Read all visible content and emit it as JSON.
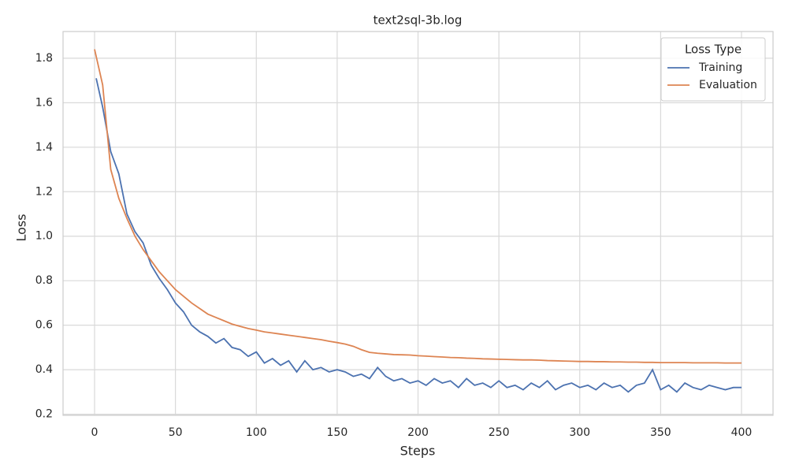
{
  "chart_data": {
    "type": "line",
    "title": "text2sql-3b.log",
    "x_label": "Steps",
    "y_label": "Loss",
    "xlim": [
      -19.5,
      419.5
    ],
    "ylim": [
      0.195,
      1.92
    ],
    "xticks": [
      0,
      50,
      100,
      150,
      200,
      250,
      300,
      350,
      400
    ],
    "yticks": [
      {
        "value": 0.2,
        "label": "0.2"
      },
      {
        "value": 0.4,
        "label": "0.4"
      },
      {
        "value": 0.6,
        "label": "0.6"
      },
      {
        "value": 0.8,
        "label": "0.8"
      },
      {
        "value": 1.0,
        "label": "1.0"
      },
      {
        "value": 1.2,
        "label": "1.2"
      },
      {
        "value": 1.4,
        "label": "1.4"
      },
      {
        "value": 1.6,
        "label": "1.6"
      },
      {
        "value": 1.8,
        "label": "1.8"
      }
    ],
    "grid": true,
    "legend_title": "Loss Type",
    "legend_position": "upper right",
    "series": [
      {
        "name": "Training",
        "color": "#4c72b0",
        "x": [
          1,
          5,
          10,
          15,
          20,
          25,
          30,
          35,
          40,
          45,
          50,
          55,
          60,
          65,
          70,
          75,
          80,
          85,
          90,
          95,
          100,
          105,
          110,
          115,
          120,
          125,
          130,
          135,
          140,
          145,
          150,
          155,
          160,
          165,
          170,
          175,
          180,
          185,
          190,
          195,
          200,
          205,
          210,
          215,
          220,
          225,
          230,
          235,
          240,
          245,
          250,
          255,
          260,
          265,
          270,
          275,
          280,
          285,
          290,
          295,
          300,
          305,
          310,
          315,
          320,
          325,
          330,
          335,
          340,
          345,
          350,
          355,
          360,
          365,
          370,
          375,
          380,
          385,
          390,
          395,
          400
        ],
        "values": [
          1.71,
          1.58,
          1.38,
          1.28,
          1.1,
          1.02,
          0.97,
          0.87,
          0.81,
          0.76,
          0.7,
          0.66,
          0.6,
          0.57,
          0.55,
          0.52,
          0.54,
          0.5,
          0.49,
          0.46,
          0.48,
          0.43,
          0.45,
          0.42,
          0.44,
          0.39,
          0.44,
          0.4,
          0.41,
          0.39,
          0.4,
          0.39,
          0.37,
          0.38,
          0.36,
          0.41,
          0.37,
          0.35,
          0.36,
          0.34,
          0.35,
          0.33,
          0.36,
          0.34,
          0.35,
          0.32,
          0.36,
          0.33,
          0.34,
          0.32,
          0.35,
          0.32,
          0.33,
          0.31,
          0.34,
          0.32,
          0.35,
          0.31,
          0.33,
          0.34,
          0.32,
          0.33,
          0.31,
          0.34,
          0.32,
          0.33,
          0.3,
          0.33,
          0.34,
          0.4,
          0.31,
          0.33,
          0.3,
          0.34,
          0.32,
          0.31,
          0.33,
          0.32,
          0.31,
          0.32,
          0.32
        ]
      },
      {
        "name": "Evaluation",
        "color": "#dd8452",
        "x": [
          0,
          5,
          10,
          15,
          20,
          25,
          30,
          35,
          40,
          45,
          50,
          55,
          60,
          65,
          70,
          75,
          80,
          85,
          90,
          95,
          100,
          105,
          110,
          115,
          120,
          125,
          130,
          135,
          140,
          145,
          150,
          155,
          160,
          165,
          170,
          175,
          180,
          185,
          190,
          195,
          200,
          205,
          210,
          215,
          220,
          225,
          230,
          235,
          240,
          245,
          250,
          255,
          260,
          265,
          270,
          275,
          280,
          285,
          290,
          295,
          300,
          305,
          310,
          315,
          320,
          325,
          330,
          335,
          340,
          345,
          350,
          355,
          360,
          365,
          370,
          375,
          380,
          385,
          390,
          395,
          400
        ],
        "values": [
          1.84,
          1.68,
          1.3,
          1.17,
          1.08,
          1.0,
          0.94,
          0.89,
          0.84,
          0.8,
          0.76,
          0.73,
          0.7,
          0.675,
          0.65,
          0.635,
          0.62,
          0.605,
          0.595,
          0.585,
          0.578,
          0.57,
          0.565,
          0.56,
          0.555,
          0.55,
          0.545,
          0.54,
          0.535,
          0.528,
          0.522,
          0.515,
          0.505,
          0.49,
          0.478,
          0.474,
          0.471,
          0.468,
          0.467,
          0.466,
          0.463,
          0.461,
          0.459,
          0.457,
          0.455,
          0.454,
          0.452,
          0.451,
          0.449,
          0.448,
          0.447,
          0.446,
          0.445,
          0.444,
          0.444,
          0.443,
          0.441,
          0.44,
          0.439,
          0.438,
          0.437,
          0.437,
          0.436,
          0.436,
          0.435,
          0.435,
          0.434,
          0.434,
          0.433,
          0.433,
          0.432,
          0.432,
          0.432,
          0.432,
          0.431,
          0.431,
          0.431,
          0.431,
          0.43,
          0.43,
          0.43
        ]
      }
    ]
  }
}
